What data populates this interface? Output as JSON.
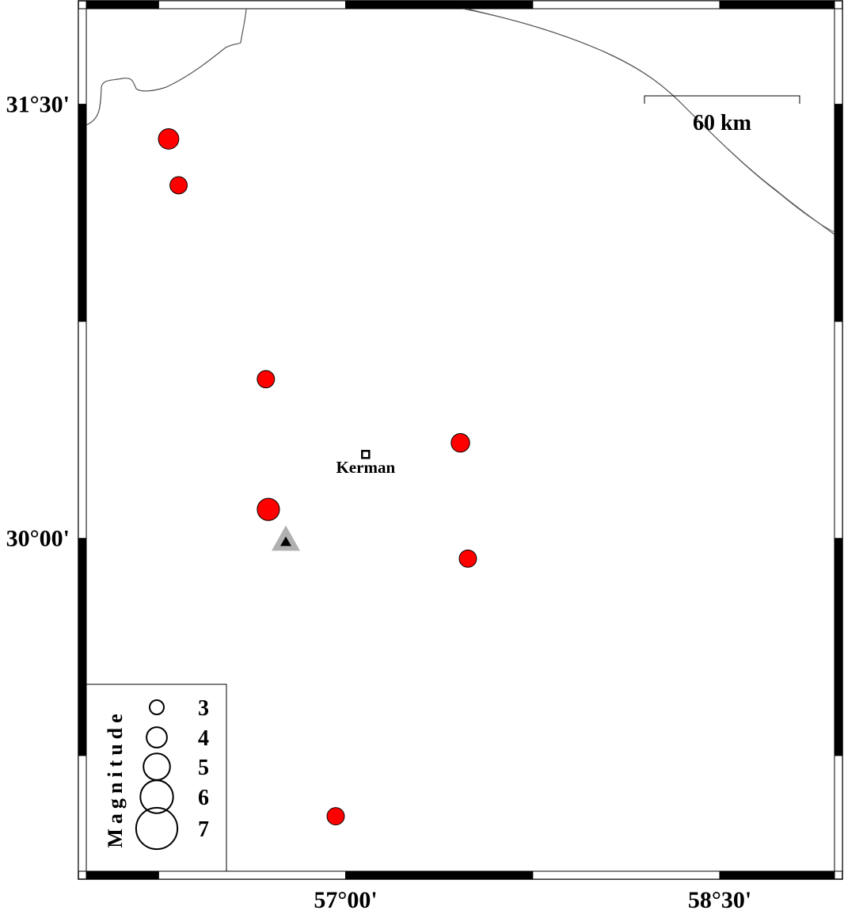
{
  "map": {
    "extent": {
      "lon": [
        55.96,
        58.96
      ],
      "lat": [
        28.85,
        31.83
      ]
    },
    "colors": {
      "event_fill": "#ff0000",
      "station_outer": "#b0b0b0",
      "station_inner": "#000000",
      "frame": "#000000"
    },
    "lon_ticks": [
      {
        "value": 57.0,
        "label": "57°00'"
      },
      {
        "value": 58.5,
        "label": "58°30'"
      }
    ],
    "lat_ticks": [
      {
        "value": 31.5,
        "label": "31°30'"
      },
      {
        "value": 30.0,
        "label": "30°00'"
      }
    ],
    "scale_bar": {
      "label": "60 km"
    },
    "city": {
      "name": "Kerman",
      "lon": 57.08,
      "lat": 30.29,
      "icon": "square-city-icon"
    },
    "station": {
      "lon": 56.76,
      "lat": 29.99,
      "icon": "triangle-station-icon"
    },
    "events": [
      {
        "lon": 56.29,
        "lat": 31.38,
        "mag": 4.0
      },
      {
        "lon": 56.33,
        "lat": 31.22,
        "mag": 3.5
      },
      {
        "lon": 56.68,
        "lat": 30.55,
        "mag": 3.5
      },
      {
        "lon": 57.46,
        "lat": 30.33,
        "mag": 3.7
      },
      {
        "lon": 56.69,
        "lat": 30.1,
        "mag": 4.3
      },
      {
        "lon": 57.49,
        "lat": 29.93,
        "mag": 3.5
      },
      {
        "lon": 56.96,
        "lat": 29.04,
        "mag": 3.5
      }
    ],
    "legend": {
      "title": "Magnitude",
      "items": [
        {
          "mag": 3,
          "label": "3"
        },
        {
          "mag": 4,
          "label": "4"
        },
        {
          "mag": 5,
          "label": "5"
        },
        {
          "mag": 6,
          "label": "6"
        },
        {
          "mag": 7,
          "label": "7"
        }
      ]
    }
  }
}
